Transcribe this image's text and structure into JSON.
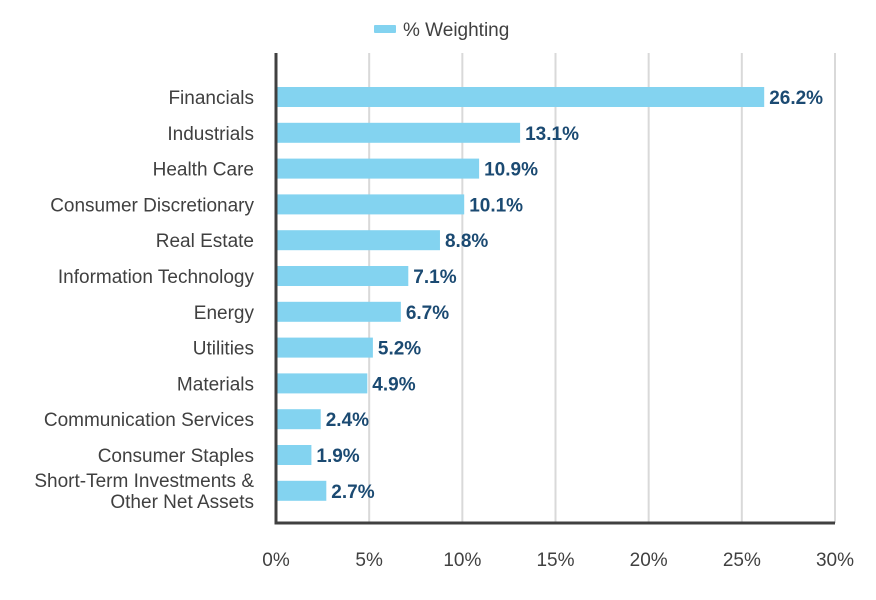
{
  "chart_data": {
    "type": "bar",
    "orientation": "horizontal",
    "categories": [
      "Financials",
      "Industrials",
      "Health Care",
      "Consumer Discretionary",
      "Real Estate",
      "Information Technology",
      "Energy",
      "Utilities",
      "Materials",
      "Communication Services",
      "Consumer Staples",
      "Short-Term Investments & Other Net Assets"
    ],
    "series": [
      {
        "name": "% Weighting",
        "values": [
          26.2,
          13.1,
          10.9,
          10.1,
          8.8,
          7.1,
          6.7,
          5.2,
          4.9,
          2.4,
          1.9,
          2.7
        ]
      }
    ],
    "value_labels": [
      "26.2%",
      "13.1%",
      "10.9%",
      "10.1%",
      "8.8%",
      "7.1%",
      "6.7%",
      "5.2%",
      "4.9%",
      "2.4%",
      "1.9%",
      "2.7%"
    ],
    "xlim": [
      0,
      30
    ],
    "xticks": [
      0,
      5,
      10,
      15,
      20,
      25,
      30
    ],
    "xtick_labels": [
      "0%",
      "5%",
      "10%",
      "15%",
      "20%",
      "25%",
      "30%"
    ],
    "grid": "vertical",
    "legend": "top-center",
    "colors": {
      "bar": "#83D3F0",
      "value_label": "#1B4A72",
      "axis": "#404040",
      "grid": "#D9D9D9",
      "text": "#404040"
    }
  }
}
